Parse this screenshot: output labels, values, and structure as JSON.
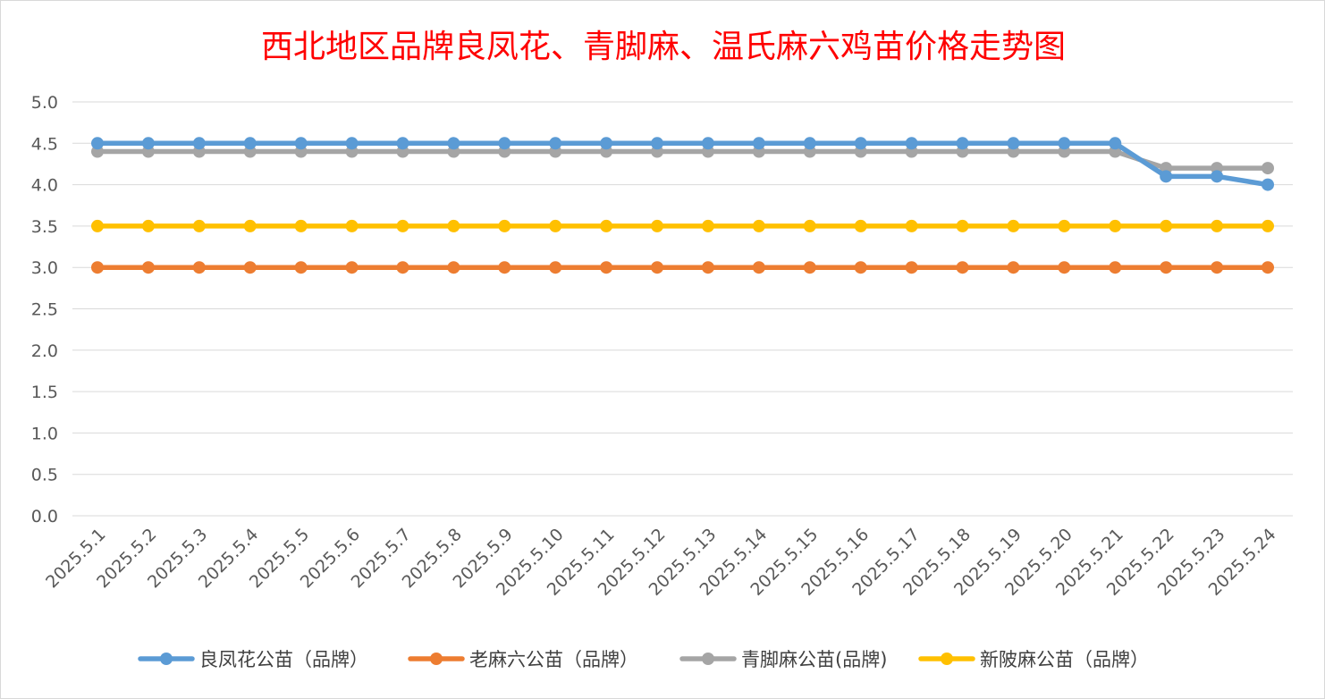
{
  "chart_data": {
    "type": "line",
    "title": "西北地区品牌良凤花、青脚麻、温氏麻六鸡苗价格走势图",
    "xlabel": "",
    "ylabel": "",
    "categories": [
      "2025.5.1",
      "2025.5.2",
      "2025.5.3",
      "2025.5.4",
      "2025.5.5",
      "2025.5.6",
      "2025.5.7",
      "2025.5.8",
      "2025.5.9",
      "2025.5.10",
      "2025.5.11",
      "2025.5.12",
      "2025.5.13",
      "2025.5.14",
      "2025.5.15",
      "2025.5.16",
      "2025.5.17",
      "2025.5.18",
      "2025.5.19",
      "2025.5.20",
      "2025.5.21",
      "2025.5.22",
      "2025.5.23",
      "2025.5.24"
    ],
    "ylim": [
      0,
      5
    ],
    "yticks": [
      "0.0",
      "0.5",
      "1.0",
      "1.5",
      "2.0",
      "2.5",
      "3.0",
      "3.5",
      "4.0",
      "4.5",
      "5.0"
    ],
    "grid": true,
    "legend_position": "bottom",
    "series": [
      {
        "name": "良凤花公苗（品牌）",
        "color": "#5b9bd5",
        "values": [
          4.5,
          4.5,
          4.5,
          4.5,
          4.5,
          4.5,
          4.5,
          4.5,
          4.5,
          4.5,
          4.5,
          4.5,
          4.5,
          4.5,
          4.5,
          4.5,
          4.5,
          4.5,
          4.5,
          4.5,
          4.5,
          4.1,
          4.1,
          4.0
        ]
      },
      {
        "name": "老麻六公苗（品牌）",
        "color": "#ed7d31",
        "values": [
          3.0,
          3.0,
          3.0,
          3.0,
          3.0,
          3.0,
          3.0,
          3.0,
          3.0,
          3.0,
          3.0,
          3.0,
          3.0,
          3.0,
          3.0,
          3.0,
          3.0,
          3.0,
          3.0,
          3.0,
          3.0,
          3.0,
          3.0,
          3.0
        ]
      },
      {
        "name": "青脚麻公苗(品牌)",
        "color": "#a5a5a5",
        "values": [
          4.4,
          4.4,
          4.4,
          4.4,
          4.4,
          4.4,
          4.4,
          4.4,
          4.4,
          4.4,
          4.4,
          4.4,
          4.4,
          4.4,
          4.4,
          4.4,
          4.4,
          4.4,
          4.4,
          4.4,
          4.4,
          4.2,
          4.2,
          4.2
        ]
      },
      {
        "name": "新陂麻公苗（品牌）",
        "color": "#ffc000",
        "values": [
          3.5,
          3.5,
          3.5,
          3.5,
          3.5,
          3.5,
          3.5,
          3.5,
          3.5,
          3.5,
          3.5,
          3.5,
          3.5,
          3.5,
          3.5,
          3.5,
          3.5,
          3.5,
          3.5,
          3.5,
          3.5,
          3.5,
          3.5,
          3.5
        ]
      }
    ]
  }
}
